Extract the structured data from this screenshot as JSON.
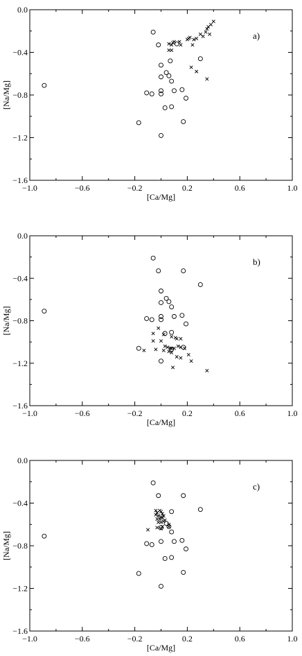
{
  "chart_data": [
    {
      "type": "scatter",
      "panel_label": "a)",
      "xlabel": "[Ca/Mg]",
      "ylabel": "[Na/Mg]",
      "xlim": [
        -1.0,
        1.0
      ],
      "ylim": [
        -1.6,
        0.0
      ],
      "xticks": [
        -1.0,
        -0.6,
        -0.2,
        0.2,
        0.6,
        1.0
      ],
      "xtick_labels": [
        "−1.0",
        "−0.6",
        "−0.2",
        "0.2",
        "0.6",
        "1.0"
      ],
      "yticks": [
        0.0,
        -0.4,
        -0.8,
        -1.2,
        -1.6
      ],
      "ytick_labels": [
        "0.0",
        "−0.4",
        "−0.8",
        "−1.2",
        "−1.6"
      ],
      "grid": false,
      "series": [
        {
          "marker": "circle",
          "x": [
            -0.89,
            -0.06,
            -0.02,
            0.0,
            0.04,
            0.06,
            0.07,
            0.12,
            0.3,
            0.0,
            0.08,
            -0.11,
            -0.07,
            0.0,
            0.0,
            0.1,
            0.16,
            0.19,
            0.03,
            0.08,
            -0.17,
            0.17,
            0.0
          ],
          "y": [
            -0.71,
            -0.21,
            -0.33,
            -0.52,
            -0.59,
            -0.62,
            -0.48,
            -0.32,
            -0.46,
            -0.63,
            -0.67,
            -0.78,
            -0.79,
            -0.76,
            -0.79,
            -0.76,
            -0.75,
            -0.83,
            -0.92,
            -0.91,
            -1.06,
            -1.05,
            -1.18
          ]
        },
        {
          "marker": "cross",
          "x": [
            0.06,
            0.08,
            0.09,
            0.1,
            0.14,
            0.15,
            0.2,
            0.21,
            0.22,
            0.24,
            0.25,
            0.27,
            0.3,
            0.32,
            0.34,
            0.35,
            0.36,
            0.37,
            0.38,
            0.4,
            0.23,
            0.27,
            0.06,
            0.08,
            0.35
          ],
          "y": [
            -0.32,
            -0.33,
            -0.31,
            -0.3,
            -0.3,
            -0.33,
            -0.28,
            -0.27,
            -0.26,
            -0.33,
            -0.28,
            -0.27,
            -0.23,
            -0.25,
            -0.21,
            -0.18,
            -0.16,
            -0.23,
            -0.14,
            -0.11,
            -0.54,
            -0.58,
            -0.38,
            -0.38,
            -0.65
          ]
        }
      ]
    },
    {
      "type": "scatter",
      "panel_label": "b)",
      "xlabel": "[Ca/Mg]",
      "ylabel": "[Na/Mg]",
      "xlim": [
        -1.0,
        1.0
      ],
      "ylim": [
        -1.6,
        0.0
      ],
      "xticks": [
        -1.0,
        -0.6,
        -0.2,
        0.2,
        0.6,
        1.0
      ],
      "xtick_labels": [
        "−1.0",
        "−0.6",
        "−0.2",
        "0.2",
        "0.6",
        "1.0"
      ],
      "yticks": [
        0.0,
        -0.4,
        -0.8,
        -1.2,
        -1.6
      ],
      "ytick_labels": [
        "0.0",
        "−0.4",
        "−0.8",
        "−1.2",
        "−1.6"
      ],
      "grid": false,
      "series": [
        {
          "marker": "circle",
          "x": [
            -0.89,
            -0.06,
            -0.02,
            0.17,
            0.0,
            0.06,
            0.3,
            0.0,
            0.08,
            0.04,
            -0.11,
            -0.07,
            0.0,
            0.0,
            0.1,
            0.16,
            0.19,
            0.08,
            0.03,
            -0.17,
            0.17,
            0.08,
            0.0
          ],
          "y": [
            -0.71,
            -0.21,
            -0.33,
            -0.33,
            -0.52,
            -0.62,
            -0.46,
            -0.63,
            -0.67,
            -0.59,
            -0.78,
            -0.79,
            -0.76,
            -0.79,
            -0.76,
            -0.75,
            -0.83,
            -0.91,
            -0.92,
            -1.06,
            -1.05,
            -1.07,
            -1.18
          ]
        },
        {
          "marker": "cross",
          "x": [
            -0.02,
            -0.06,
            0.02,
            0.08,
            0.11,
            0.12,
            0.15,
            -0.06,
            0.0,
            0.03,
            0.05,
            0.07,
            0.08,
            0.1,
            0.13,
            0.15,
            0.18,
            -0.04,
            0.02,
            0.06,
            0.08,
            0.12,
            0.15,
            -0.13,
            0.21,
            0.23,
            0.09,
            0.35
          ],
          "y": [
            -0.87,
            -0.92,
            -0.93,
            -0.95,
            -0.96,
            -0.97,
            -0.97,
            -0.99,
            -0.99,
            -1.04,
            -1.05,
            -1.06,
            -1.06,
            -1.06,
            -1.04,
            -1.05,
            -1.06,
            -1.07,
            -1.08,
            -1.09,
            -1.1,
            -1.14,
            -1.15,
            -1.08,
            -1.12,
            -1.18,
            -1.24,
            -1.27
          ]
        }
      ]
    },
    {
      "type": "scatter",
      "panel_label": "c)",
      "xlabel": "[Ca/Mg]",
      "ylabel": "[Na/Mg]",
      "xlim": [
        -1.0,
        1.0
      ],
      "ylim": [
        -1.6,
        0.0
      ],
      "xticks": [
        -1.0,
        -0.6,
        -0.2,
        0.2,
        0.6,
        1.0
      ],
      "xtick_labels": [
        "−1.0",
        "−0.6",
        "−0.2",
        "0.2",
        "0.6",
        "1.0"
      ],
      "yticks": [
        0.0,
        -0.4,
        -0.8,
        -1.2,
        -1.6
      ],
      "ytick_labels": [
        "0.0",
        "−0.4",
        "−0.8",
        "−1.2",
        "−1.6"
      ],
      "grid": false,
      "series": [
        {
          "marker": "circle",
          "x": [
            -0.89,
            -0.06,
            -0.02,
            0.17,
            0.3,
            0.08,
            0.04,
            0.0,
            0.06,
            0.08,
            -0.11,
            -0.07,
            0.0,
            0.1,
            0.16,
            0.19,
            0.03,
            0.08,
            -0.17,
            0.17,
            0.0
          ],
          "y": [
            -0.71,
            -0.21,
            -0.33,
            -0.33,
            -0.46,
            -0.48,
            -0.59,
            -0.63,
            -0.62,
            -0.67,
            -0.78,
            -0.79,
            -0.76,
            -0.76,
            -0.75,
            -0.83,
            -0.92,
            -0.91,
            -1.06,
            -1.05,
            -1.18
          ]
        },
        {
          "marker": "cross",
          "x": [
            -0.04,
            -0.03,
            -0.01,
            0.0,
            0.01,
            -0.04,
            -0.02,
            0.0,
            0.02,
            -0.03,
            -0.01,
            0.01,
            0.03,
            -0.02,
            0.0,
            0.02,
            0.06,
            -0.1,
            -0.03,
            0.0,
            0.01,
            0.06
          ],
          "y": [
            -0.47,
            -0.49,
            -0.47,
            -0.48,
            -0.5,
            -0.51,
            -0.52,
            -0.53,
            -0.52,
            -0.55,
            -0.55,
            -0.54,
            -0.56,
            -0.58,
            -0.58,
            -0.57,
            -0.6,
            -0.65,
            -0.63,
            -0.64,
            -0.62,
            -0.62
          ]
        }
      ]
    }
  ]
}
